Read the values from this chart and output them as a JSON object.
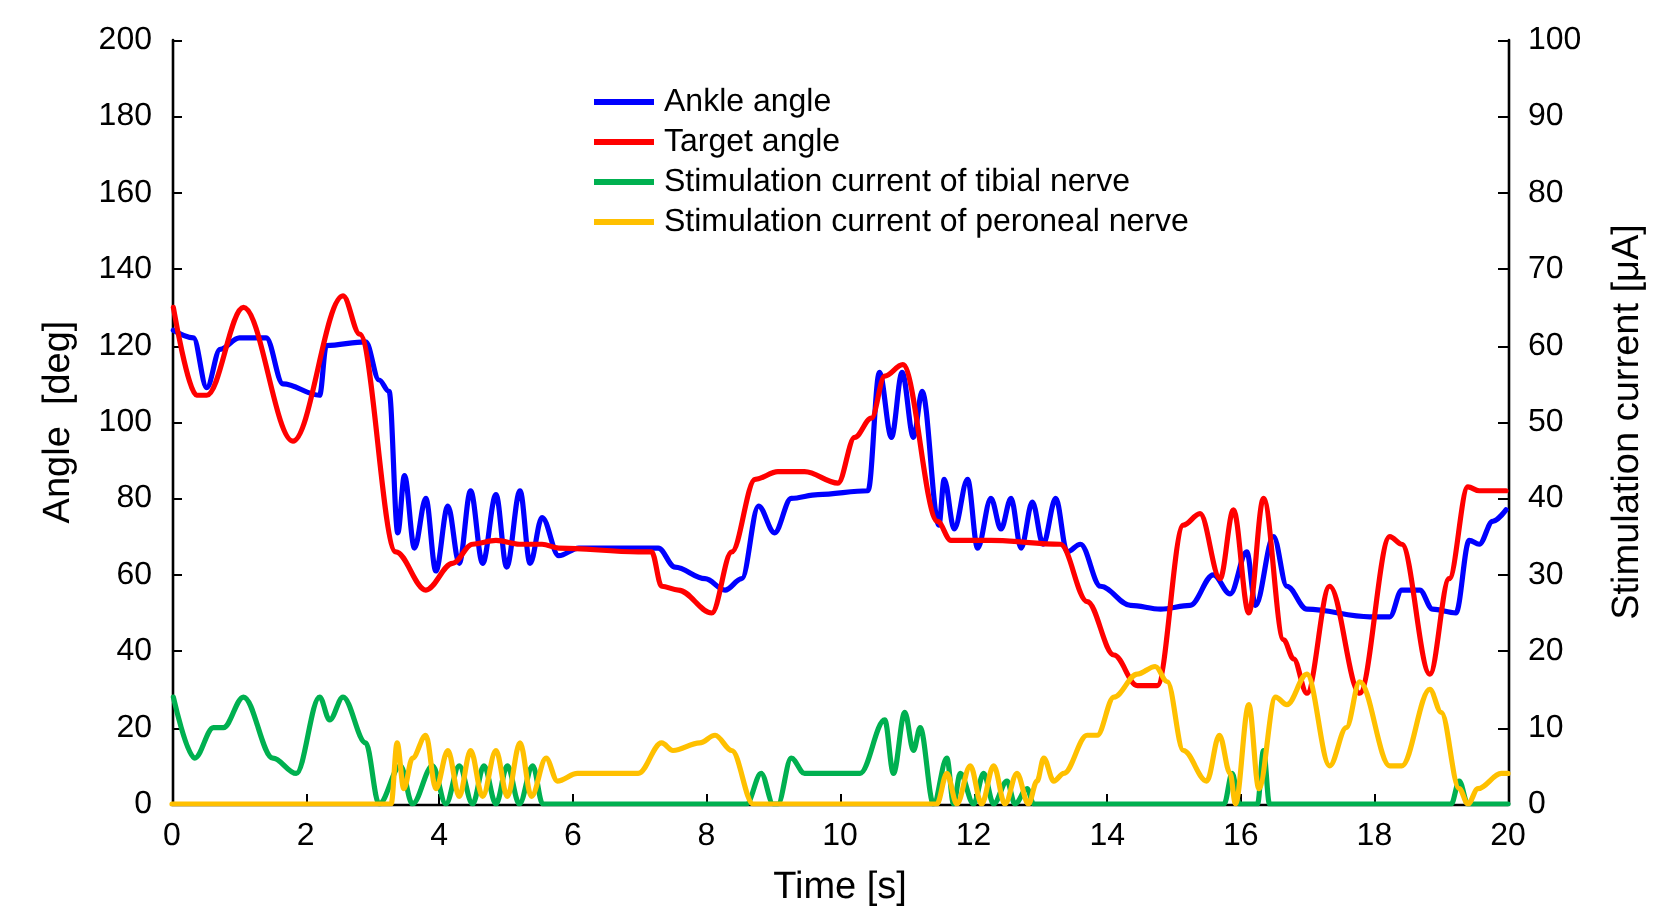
{
  "chart_data": {
    "type": "line",
    "xlabel": "Time [s]",
    "ylabel": "Angle  [deg]",
    "y2label": "Stimulation current [μA]",
    "xlim": [
      0,
      20
    ],
    "xticks": [
      0,
      2,
      4,
      6,
      8,
      10,
      12,
      14,
      16,
      18,
      20
    ],
    "ylim": [
      0,
      200
    ],
    "yticks": [
      0,
      20,
      40,
      60,
      80,
      100,
      120,
      140,
      160,
      180,
      200
    ],
    "y2lim": [
      0,
      100
    ],
    "y2ticks": [
      0,
      10,
      20,
      30,
      40,
      50,
      60,
      70,
      80,
      90,
      100
    ],
    "grid": false,
    "legend": "top",
    "marker": "none",
    "series": [
      {
        "name": "Ankle angle",
        "color": "#0000ff",
        "x": [
          0.02,
          0.32,
          0.52,
          0.72,
          1.01,
          1.41,
          1.66,
          2.21,
          2.31,
          2.9,
          3.1,
          3.25,
          3.38,
          3.48,
          3.63,
          3.8,
          3.95,
          4.13,
          4.3,
          4.47,
          4.65,
          4.85,
          5.01,
          5.21,
          5.36,
          5.54,
          5.79,
          6.09,
          6.98,
          7.28,
          7.53,
          7.98,
          8.28,
          8.53,
          8.78,
          9.02,
          9.27,
          9.67,
          10.42,
          10.59,
          10.77,
          10.93,
          11.1,
          11.23,
          11.48,
          11.56,
          11.71,
          11.91,
          12.06,
          12.26,
          12.41,
          12.56,
          12.71,
          12.88,
          13.04,
          13.23,
          13.4,
          13.6,
          13.9,
          14.35,
          14.8,
          15.24,
          15.59,
          15.84,
          16.09,
          16.22,
          16.49,
          16.69,
          16.99,
          17.93,
          18.23,
          18.41,
          18.68,
          18.87,
          19.22,
          19.42,
          19.57,
          19.77,
          19.97
        ],
        "values": [
          124,
          122,
          109,
          119,
          122,
          122,
          110,
          107,
          120,
          121,
          111,
          108,
          71,
          86,
          67,
          80,
          61,
          78,
          63,
          82,
          63,
          81,
          62,
          82,
          63,
          75,
          65,
          67,
          67,
          67,
          62,
          59,
          56,
          59,
          78,
          71,
          80,
          81,
          82,
          113,
          96,
          113,
          96,
          108,
          73,
          85,
          72,
          85,
          67,
          80,
          72,
          80,
          67,
          79,
          68,
          80,
          66,
          68,
          57,
          52,
          51,
          52,
          60,
          55,
          66,
          52,
          70,
          57,
          51,
          49,
          49,
          56,
          56,
          51,
          50,
          69,
          68,
          74,
          77
        ]
      },
      {
        "name": "Target angle",
        "color": "#ff0000",
        "x": [
          0.02,
          0.37,
          0.52,
          1.07,
          1.81,
          2.56,
          2.81,
          3.35,
          3.8,
          4.2,
          4.5,
          4.85,
          5.2,
          5.54,
          5.79,
          6.98,
          7.18,
          7.33,
          7.58,
          8.08,
          8.38,
          8.73,
          9.07,
          9.47,
          9.97,
          10.22,
          10.47,
          10.67,
          10.94,
          11.46,
          11.66,
          12.26,
          13.3,
          13.7,
          14.1,
          14.45,
          14.75,
          15.14,
          15.39,
          15.69,
          15.89,
          16.12,
          16.34,
          16.64,
          16.79,
          16.99,
          17.33,
          17.78,
          18.23,
          18.41,
          18.83,
          19.12,
          19.4,
          19.57,
          19.97
        ],
        "values": [
          130,
          107,
          107,
          130,
          95,
          133,
          123,
          66,
          56,
          63,
          68,
          69,
          68,
          68,
          67,
          66,
          66,
          57,
          56,
          50,
          66,
          85,
          87,
          87,
          84,
          96,
          101,
          112,
          115,
          74,
          69,
          69,
          68,
          53,
          39,
          31,
          31,
          73,
          76,
          59,
          77,
          50,
          80,
          43,
          38,
          29,
          57,
          29,
          70,
          68,
          34,
          59,
          83,
          82,
          82
        ]
      },
      {
        "name": "Stimulation current of tibial nerve",
        "color": "#00b050",
        "axis": "y2",
        "x": [
          0.02,
          0.34,
          0.62,
          0.77,
          1.07,
          1.51,
          1.86,
          2.21,
          2.36,
          2.56,
          2.9,
          3.1,
          3.42,
          3.6,
          3.9,
          4.1,
          4.3,
          4.5,
          4.67,
          4.85,
          5.02,
          5.2,
          5.4,
          5.55,
          8.6,
          8.82,
          9.0,
          9.07,
          9.27,
          9.47,
          9.9,
          10.3,
          10.67,
          10.8,
          10.97,
          11.1,
          11.2,
          11.4,
          11.6,
          11.7,
          11.8,
          12.0,
          12.15,
          12.3,
          12.5,
          12.62,
          12.8,
          12.9,
          15.75,
          15.87,
          15.98,
          16.25,
          16.34,
          16.43,
          19.15,
          19.27,
          19.4,
          20
        ],
        "values": [
          14,
          6,
          10,
          10,
          14,
          6,
          4,
          14,
          11,
          14,
          8,
          0,
          5,
          0,
          5,
          0,
          5,
          0,
          5,
          0,
          5,
          0,
          5,
          0,
          0,
          4,
          0,
          0,
          6,
          4,
          4,
          4,
          11,
          4,
          12,
          7,
          10,
          0,
          6,
          0,
          4,
          0,
          4,
          0,
          3,
          0,
          2,
          0,
          0,
          4,
          0,
          0,
          7,
          0,
          0,
          3,
          0,
          0
        ]
      },
      {
        "name": "Stimulation current of peroneal nerve",
        "color": "#ffc000",
        "axis": "y2",
        "x": [
          0,
          3.28,
          3.37,
          3.47,
          3.6,
          3.8,
          3.95,
          4.13,
          4.3,
          4.47,
          4.65,
          4.85,
          5.02,
          5.21,
          5.38,
          5.6,
          5.77,
          6.07,
          6.98,
          7.33,
          7.5,
          7.9,
          8.13,
          8.38,
          8.7,
          11.45,
          11.6,
          11.75,
          11.95,
          12.12,
          12.3,
          12.47,
          12.65,
          12.82,
          12.95,
          13.05,
          13.2,
          13.35,
          13.7,
          13.85,
          14.1,
          14.45,
          14.72,
          14.9,
          15.14,
          15.49,
          15.68,
          15.84,
          15.92,
          16.12,
          16.27,
          16.52,
          16.69,
          16.99,
          17.33,
          17.58,
          17.78,
          18.23,
          18.41,
          18.83,
          19.0,
          19.27,
          19.4,
          19.55,
          19.9,
          20
        ],
        "values": [
          0,
          0,
          8,
          2,
          6,
          9,
          2,
          7,
          1,
          7,
          1,
          7,
          1,
          8,
          1,
          6,
          3,
          4,
          4,
          8,
          7,
          8,
          9,
          7,
          0,
          0,
          4,
          0,
          5,
          0,
          5,
          0,
          4,
          0,
          3,
          6,
          3,
          4,
          9,
          9,
          14,
          17,
          18,
          16,
          7,
          3,
          9,
          4,
          0,
          13,
          2,
          14,
          13,
          17,
          5,
          10,
          16,
          5,
          5,
          15,
          12,
          2,
          0,
          2,
          4,
          4
        ]
      }
    ]
  }
}
